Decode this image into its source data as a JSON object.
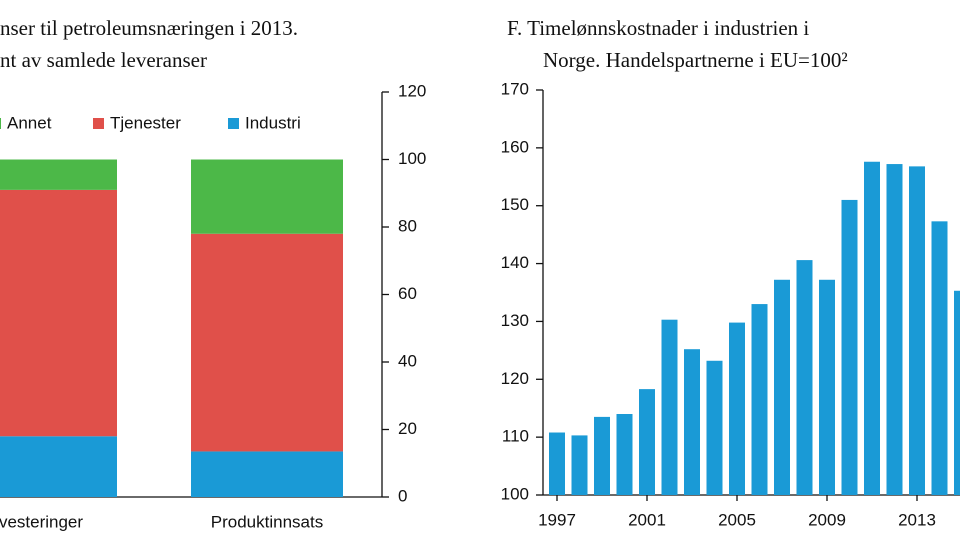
{
  "chart_data": [
    {
      "type": "bar",
      "stacked": true,
      "y_axis_side": "right",
      "title": [
        "nser til petroleumsnæringen i 2013.",
        "nt av samlede leveranser"
      ],
      "categories": [
        "vesteringer",
        "Produktinnsats"
      ],
      "series": [
        {
          "name": "Industri",
          "color": "#1a9ad6",
          "values": [
            18,
            13.5
          ]
        },
        {
          "name": "Tjenester",
          "color": "#e0504a",
          "values": [
            73,
            64.5
          ]
        },
        {
          "name": "Annet",
          "color": "#4cb848",
          "values": [
            9,
            22
          ]
        }
      ],
      "legend_order": [
        "Annet",
        "Tjenester",
        "Industri"
      ],
      "ylim": [
        0,
        120
      ],
      "yticks": [
        0,
        20,
        40,
        60,
        80,
        100,
        120
      ]
    },
    {
      "type": "bar",
      "stacked": false,
      "y_axis_side": "left",
      "title": [
        "F.  Timelønnskostnader i industrien i",
        "Norge. Handelspartnerne i EU=100²"
      ],
      "categories": [
        "1997",
        null,
        null,
        null,
        "2001",
        null,
        null,
        null,
        "2005",
        null,
        null,
        null,
        "2009",
        null,
        null,
        null,
        "2013",
        null,
        null
      ],
      "values": [
        110.8,
        110.3,
        113.5,
        114,
        118.3,
        130.3,
        125.2,
        123.2,
        129.8,
        133,
        137.2,
        140.6,
        137.2,
        151,
        157.6,
        157.2,
        156.8,
        147.3,
        135.3
      ],
      "color": "#1a9ad6",
      "ylim": [
        100,
        170
      ],
      "yticks": [
        100,
        110,
        120,
        130,
        140,
        150,
        160,
        170
      ]
    }
  ]
}
